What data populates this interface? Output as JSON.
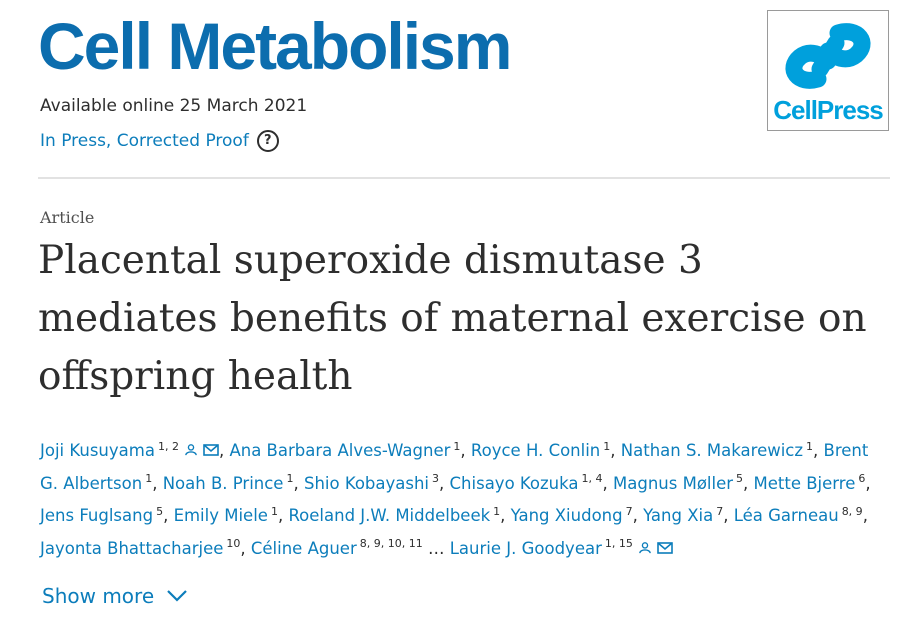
{
  "journal": {
    "title": "Cell Metabolism",
    "publisher_logo_text": "CellPress"
  },
  "availability": {
    "available_online": "Available online 25 March 2021",
    "status": "In Press, Corrected Proof",
    "help_glyph": "?"
  },
  "article": {
    "type": "Article",
    "title": "Placental superoxide dismutase 3 mediates benefits of maternal exercise on offspring health"
  },
  "authors": [
    {
      "name": "Joji Kusuyama",
      "aff": "1, 2",
      "icons": true
    },
    {
      "name": "Ana Barbara Alves-Wagner",
      "aff": "1"
    },
    {
      "name": "Royce H. Conlin",
      "aff": "1"
    },
    {
      "name": "Nathan S. Makarewicz",
      "aff": "1"
    },
    {
      "name": "Brent G. Albertson",
      "aff": "1"
    },
    {
      "name": "Noah B. Prince",
      "aff": "1"
    },
    {
      "name": "Shio Kobayashi",
      "aff": "3"
    },
    {
      "name": "Chisayo Kozuka",
      "aff": "1, 4"
    },
    {
      "name": "Magnus Møller",
      "aff": "5"
    },
    {
      "name": "Mette Bjerre",
      "aff": "6"
    },
    {
      "name": "Jens Fuglsang",
      "aff": "5"
    },
    {
      "name": "Emily Miele",
      "aff": "1"
    },
    {
      "name": "Roeland J.W. Middelbeek",
      "aff": "1"
    },
    {
      "name": "Yang Xiudong",
      "aff": "7"
    },
    {
      "name": "Yang Xia",
      "aff": "7"
    },
    {
      "name": "Léa Garneau",
      "aff": "8, 9"
    },
    {
      "name": "Jayonta Bhattacharjee",
      "aff": "10"
    },
    {
      "name": "Céline Aguer",
      "aff": "8, 9, 10, 11"
    },
    {
      "name": "Laurie J. Goodyear",
      "aff": "1, 15",
      "icons": true,
      "ellipsis_before": true
    }
  ],
  "show_more": {
    "label": "Show more"
  },
  "colors": {
    "brand_blue": "#0c6dae",
    "link_blue": "#0c7dbb",
    "cellpress_blue": "#00a0dc"
  },
  "icons": [
    "help-icon",
    "person-icon",
    "envelope-icon",
    "chevron-down-icon",
    "cellpress-logo-icon"
  ]
}
